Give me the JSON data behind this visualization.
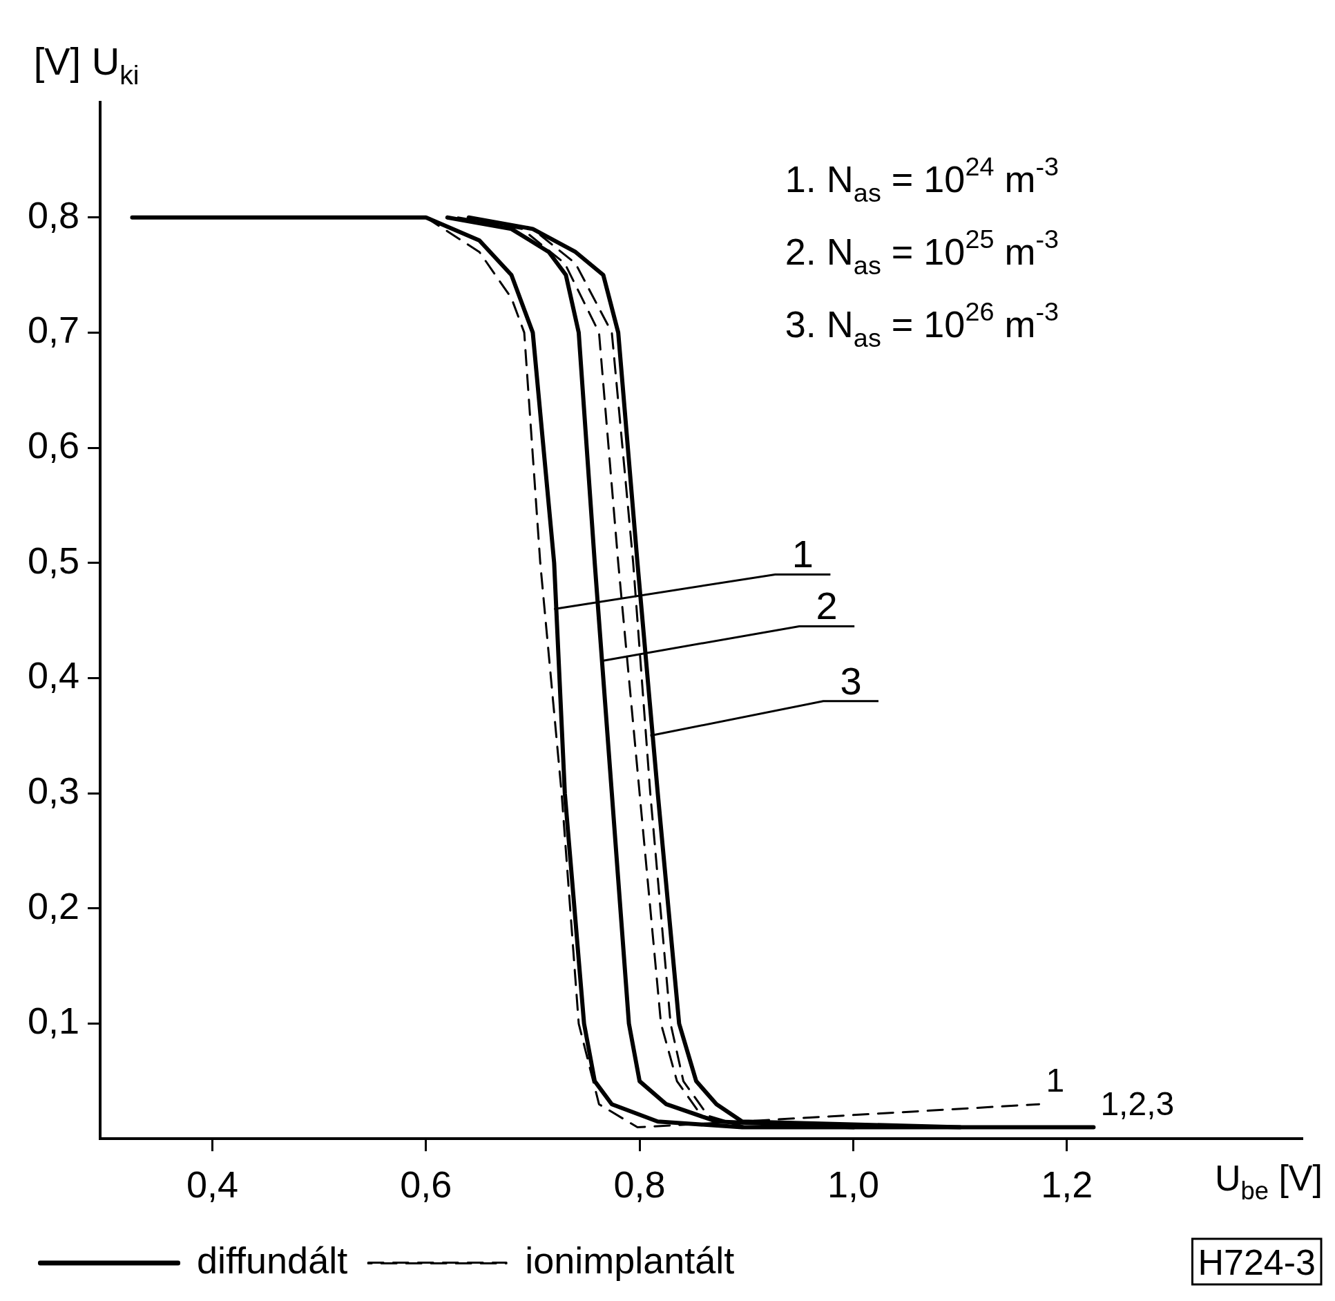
{
  "chart_data": {
    "type": "line",
    "xlabel": "U$_{be}$ [V]",
    "ylabel": "[V] U$_{ki}$",
    "xlim": [
      0.295,
      1.42
    ],
    "ylim": [
      0,
      0.9
    ],
    "xticks": [
      {
        "value": 0.4,
        "label": "0,4"
      },
      {
        "value": 0.6,
        "label": "0,6"
      },
      {
        "value": 0.8,
        "label": "0,8"
      },
      {
        "value": 1.0,
        "label": "1,0"
      },
      {
        "value": 1.2,
        "label": "1,2"
      }
    ],
    "yticks": [
      {
        "value": 0.1,
        "label": "0,1"
      },
      {
        "value": 0.2,
        "label": "0,2"
      },
      {
        "value": 0.3,
        "label": "0,3"
      },
      {
        "value": 0.4,
        "label": "0,4"
      },
      {
        "value": 0.5,
        "label": "0,5"
      },
      {
        "value": 0.6,
        "label": "0,6"
      },
      {
        "value": 0.7,
        "label": "0,7"
      },
      {
        "value": 0.8,
        "label": "0,8"
      }
    ],
    "grid": false,
    "legend": "bottom left",
    "series": [
      {
        "name": "diffundált",
        "color": "#000000",
        "line_style": "solid",
        "x": [
          0.325,
          0.6,
          0.65,
          0.68,
          0.7,
          0.72,
          0.73,
          0.748,
          0.758,
          0.774,
          0.817,
          0.896,
          1.225
        ],
        "values": [
          0.8,
          0.8,
          0.78,
          0.75,
          0.7,
          0.5,
          0.3,
          0.1,
          0.05,
          0.03,
          0.015,
          0.01,
          0.01
        ]
      },
      {
        "color": "#000000",
        "line_style": "solid",
        "x": [
          0.62,
          0.68,
          0.715,
          0.731,
          0.743,
          0.758,
          0.774,
          0.79,
          0.8,
          0.825,
          0.872,
          1.0
        ],
        "values": [
          0.8,
          0.79,
          0.77,
          0.75,
          0.7,
          0.5,
          0.3,
          0.1,
          0.05,
          0.03,
          0.015,
          0.01
        ]
      },
      {
        "color": "#000000",
        "line_style": "solid",
        "x": [
          0.64,
          0.7,
          0.74,
          0.766,
          0.78,
          0.798,
          0.817,
          0.837,
          0.853,
          0.872,
          0.896,
          1.1
        ],
        "values": [
          0.8,
          0.79,
          0.77,
          0.75,
          0.7,
          0.5,
          0.3,
          0.1,
          0.05,
          0.03,
          0.015,
          0.01
        ]
      },
      {
        "name": "ionimplantált",
        "color": "#000000",
        "line_style": "dashed",
        "x": [
          0.6,
          0.65,
          0.68,
          0.692,
          0.707,
          0.727,
          0.743,
          0.762,
          0.798,
          0.896,
          1.174
        ],
        "values": [
          0.8,
          0.77,
          0.73,
          0.7,
          0.5,
          0.3,
          0.1,
          0.03,
          0.01,
          0.015,
          0.03
        ]
      },
      {
        "color": "#000000",
        "line_style": "dashed",
        "x": [
          0.63,
          0.69,
          0.73,
          0.762,
          0.78,
          0.8,
          0.82,
          0.835,
          0.858,
          0.9
        ],
        "values": [
          0.8,
          0.79,
          0.76,
          0.7,
          0.5,
          0.3,
          0.1,
          0.05,
          0.02,
          0.01
        ]
      },
      {
        "color": "#000000",
        "line_style": "dashed",
        "x": [
          0.64,
          0.7,
          0.74,
          0.774,
          0.794,
          0.81,
          0.829,
          0.841,
          0.864,
          0.9
        ],
        "values": [
          0.8,
          0.79,
          0.76,
          0.7,
          0.5,
          0.3,
          0.1,
          0.05,
          0.02,
          0.01
        ]
      }
    ],
    "annotations": [
      "1. N$_{as}$ = 10$^{24}$ m$^{-3}$",
      "2. N$_{as}$ = 10$^{25}$ m$^{-3}$",
      "3. N$_{as}$ = 10$^{26}$ m$^{-3}$",
      {
        "text": "1",
        "x": 0.72,
        "y": 0.46
      },
      {
        "text": "2",
        "x": 0.765,
        "y": 0.415
      },
      {
        "text": "3",
        "x": 0.81,
        "y": 0.35
      },
      {
        "text": "1",
        "x": 1.174,
        "y": 0.03
      },
      {
        "text": "1,2,3",
        "x": 1.225,
        "y": 0.01
      },
      "H724-3"
    ]
  }
}
